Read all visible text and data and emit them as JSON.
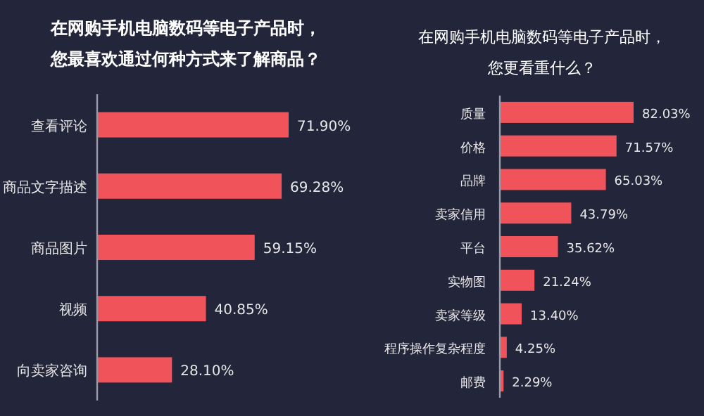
{
  "chart_data": [
    {
      "type": "bar",
      "orientation": "horizontal",
      "title": "在网购手机电脑数码等电子产品时，",
      "subtitle": "您最喜欢通过何种方式来了解商品？",
      "categories": [
        "查看评论",
        "商品文字描述",
        "商品图片",
        "视频",
        "向卖家咨询"
      ],
      "values": [
        71.9,
        69.28,
        59.15,
        40.85,
        28.1
      ],
      "value_labels": [
        "71.90%",
        "69.28%",
        "59.15%",
        "40.85%",
        "28.10%"
      ],
      "color": "#f0545a",
      "tick_labels": "y"
    },
    {
      "type": "bar",
      "orientation": "horizontal",
      "title": "在网购手机电脑数码等电子产品时，",
      "subtitle": "您更看重什么？",
      "categories": [
        "质量",
        "价格",
        "品牌",
        "卖家信用",
        "平台",
        "实物图",
        "卖家等级",
        "程序操作复杂程度",
        "邮费"
      ],
      "values": [
        82.03,
        71.57,
        65.03,
        43.79,
        35.62,
        21.24,
        13.4,
        4.25,
        2.29
      ],
      "value_labels": [
        "82.03%",
        "71.57%",
        "65.03%",
        "43.79%",
        "35.62%",
        "21.24%",
        "13.40%",
        "4.25%",
        "2.29%"
      ],
      "color": "#f0545a",
      "tick_labels": "y"
    }
  ]
}
